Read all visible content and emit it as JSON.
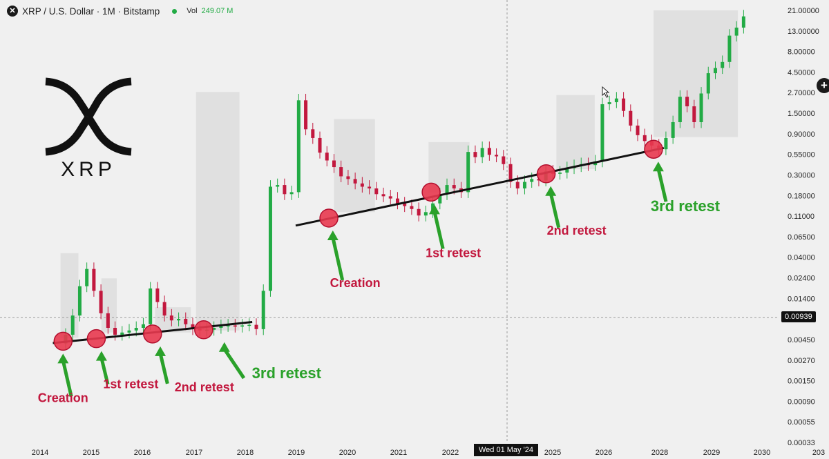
{
  "header": {
    "symbol": "XRP / U.S. Dollar · 1M · Bitstamp",
    "close_icon": "x-close-icon",
    "volume_label": "Vol",
    "volume_value": "249.07 M"
  },
  "logo": {
    "text": "XRP"
  },
  "crosshair": {
    "price_label": "0.00939",
    "date_label": "Wed 01 May '24"
  },
  "colors": {
    "up": "#22ab45",
    "down": "#c2183e",
    "annotation_green": "#2aa12a",
    "annotation_red": "#c2183e",
    "circle": "#e8384f",
    "zone": "#d9d9d9"
  },
  "chart_data": {
    "type": "candlestick",
    "y_scale": "log",
    "x_ticks": [
      "2014",
      "2015",
      "2016",
      "2017",
      "2018",
      "2019",
      "2020",
      "2021",
      "2022",
      "2024",
      "2025",
      "2026",
      "2028",
      "2029",
      "2030",
      "203"
    ],
    "y_ticks": [
      "21.00000",
      "13.00000",
      "8.00000",
      "4.50000",
      "2.70000",
      "1.50000",
      "0.90000",
      "0.55000",
      "0.30000",
      "0.18000",
      "0.11000",
      "0.06500",
      "0.04000",
      "0.02400",
      "0.01400",
      "0.00650",
      "0.00450",
      "0.00270",
      "0.00150",
      "0.00090",
      "0.00055",
      "0.00033"
    ],
    "trendlines": [
      {
        "from": {
          "date": "2014.25",
          "price": 0.0042
        },
        "to": {
          "date": "2018.15",
          "price": 0.0072
        }
      },
      {
        "from": {
          "date": "2019.0",
          "price": 0.085
        },
        "to": {
          "date": "2026.2",
          "price": 0.62
        }
      }
    ],
    "zones": [
      {
        "x0": 2014.4,
        "x1": 2014.75,
        "low": 0.0048,
        "high": 0.042
      },
      {
        "x0": 2015.2,
        "x1": 2015.5,
        "low": 0.0055,
        "high": 0.022
      },
      {
        "x0": 2016.25,
        "x1": 2016.95,
        "low": 0.0055,
        "high": 0.0105
      },
      {
        "x0": 2017.05,
        "x1": 2017.9,
        "low": 0.0058,
        "high": 2.6
      },
      {
        "x0": 2019.75,
        "x1": 2020.55,
        "low": 0.12,
        "high": 1.3
      },
      {
        "x0": 2021.6,
        "x1": 2022.4,
        "low": 0.2,
        "high": 0.72
      },
      {
        "x0": 2024.1,
        "x1": 2024.85,
        "low": 0.36,
        "high": 2.4
      },
      {
        "x0": 2026.0,
        "x1": 2027.65,
        "low": 0.82,
        "high": 21.0
      }
    ],
    "annotations": [
      {
        "text": "Creation",
        "color": "red",
        "circle": {
          "date": 2014.45,
          "price": 0.0044
        }
      },
      {
        "text": "1st retest",
        "color": "red",
        "circle": {
          "date": 2015.1,
          "price": 0.0047
        }
      },
      {
        "text": "2nd retest",
        "color": "red",
        "circle": {
          "date": 2016.2,
          "price": 0.0053
        }
      },
      {
        "text": "3rd retest",
        "color": "green",
        "circle": {
          "date": 2017.2,
          "price": 0.0059
        }
      },
      {
        "text": "Creation",
        "color": "red",
        "circle": {
          "date": 2019.65,
          "price": 0.103
        }
      },
      {
        "text": "1st retest",
        "color": "red",
        "circle": {
          "date": 2021.65,
          "price": 0.2
        }
      },
      {
        "text": "2nd retest",
        "color": "red",
        "circle": {
          "date": 2023.9,
          "price": 0.32
        }
      },
      {
        "text": "3rd retest",
        "color": "green",
        "circle": {
          "date": 2026.0,
          "price": 0.6
        }
      }
    ],
    "candles_close": [
      0.0052,
      0.0085,
      0.018,
      0.028,
      0.016,
      0.009,
      0.0062,
      0.0052,
      0.0055,
      0.0058,
      0.0062,
      0.0068,
      0.017,
      0.012,
      0.0085,
      0.0075,
      0.0078,
      0.0068,
      0.006,
      0.0058,
      0.0059,
      0.0062,
      0.0065,
      0.0066,
      0.0064,
      0.0066,
      0.0067,
      0.006,
      0.016,
      0.23,
      0.24,
      0.19,
      0.2,
      2.1,
      1.0,
      0.8,
      0.55,
      0.45,
      0.38,
      0.3,
      0.28,
      0.25,
      0.23,
      0.22,
      0.19,
      0.18,
      0.17,
      0.15,
      0.14,
      0.13,
      0.11,
      0.12,
      0.15,
      0.19,
      0.24,
      0.22,
      0.2,
      0.56,
      0.49,
      0.62,
      0.52,
      0.5,
      0.41,
      0.26,
      0.22,
      0.26,
      0.28,
      0.27,
      0.34,
      0.32,
      0.33,
      0.37,
      0.39,
      0.41,
      0.4,
      0.44,
      1.9,
      2.0,
      2.2,
      1.6,
      1.1,
      0.86,
      0.74,
      0.66,
      0.6,
      0.8,
      1.2,
      2.3,
      1.8,
      1.2,
      2.5,
      4.2,
      4.8,
      5.6,
      11.0,
      13.5,
      18.0
    ]
  }
}
